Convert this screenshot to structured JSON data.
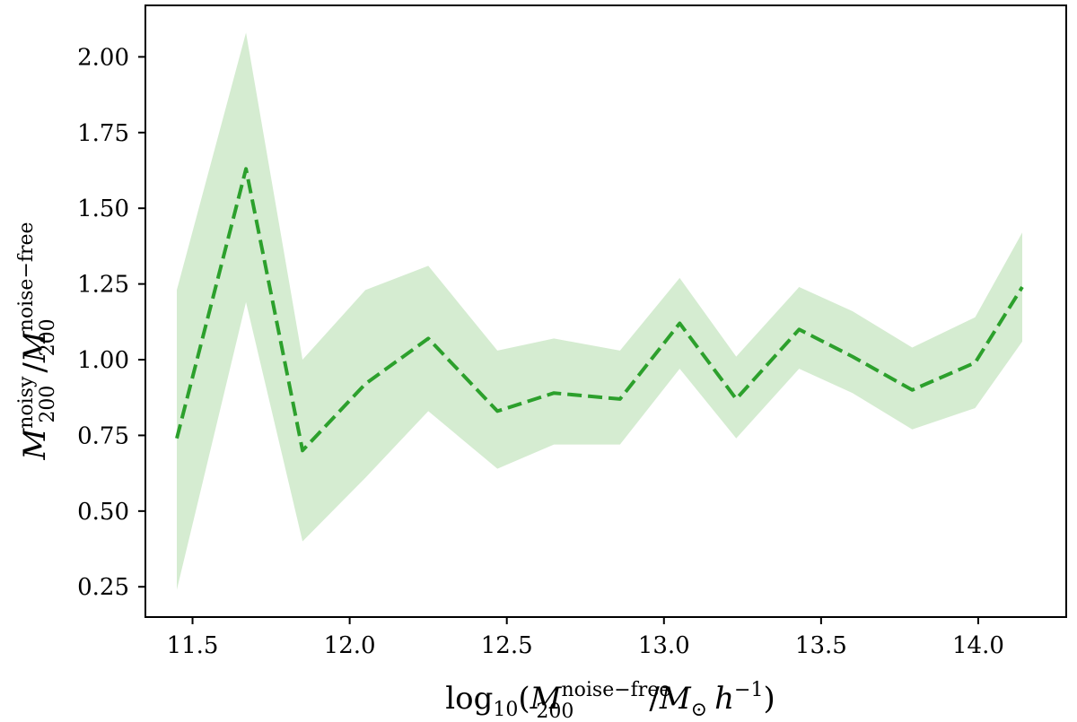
{
  "chart_data": {
    "type": "line",
    "title": "",
    "xlabel": {
      "prefix": "log",
      "log_base": "10",
      "open": "(",
      "symbol": "M",
      "subscript": "200",
      "superscript": "noise−free",
      "divider": "/",
      "mass_symbol": "M",
      "mass_sub": "⊙",
      "h": "h",
      "h_exp": "−1",
      "close": ")"
    },
    "ylabel": {
      "num_symbol": "M",
      "num_sub": "200",
      "num_sup": "noisy",
      "divider": "/",
      "den_symbol": "M",
      "den_sub": "200",
      "den_sup": "noise−free"
    },
    "xlim": [
      11.35,
      14.28
    ],
    "ylim": [
      0.15,
      2.17
    ],
    "xticks": [
      11.5,
      12.0,
      12.5,
      13.0,
      13.5,
      14.0
    ],
    "xtick_labels": [
      "11.5",
      "12.0",
      "12.5",
      "13.0",
      "13.5",
      "14.0"
    ],
    "yticks": [
      0.25,
      0.5,
      0.75,
      1.0,
      1.25,
      1.5,
      1.75,
      2.0
    ],
    "ytick_labels": [
      "0.25",
      "0.50",
      "0.75",
      "1.00",
      "1.25",
      "1.50",
      "1.75",
      "2.00"
    ],
    "grid": false,
    "legend": "none",
    "series": [
      {
        "style": "dashed",
        "color": "#2ca02c",
        "band_color": "#d5ecd1",
        "x": [
          11.45,
          11.67,
          11.85,
          12.05,
          12.25,
          12.47,
          12.65,
          12.86,
          13.05,
          13.23,
          13.43,
          13.6,
          13.79,
          13.99,
          14.14
        ],
        "y": [
          0.74,
          1.63,
          0.7,
          0.92,
          1.07,
          0.83,
          0.89,
          0.87,
          1.12,
          0.87,
          1.1,
          1.01,
          0.9,
          0.99,
          1.24
        ],
        "lower": [
          0.24,
          1.19,
          0.4,
          0.61,
          0.83,
          0.64,
          0.72,
          0.72,
          0.97,
          0.74,
          0.97,
          0.89,
          0.77,
          0.84,
          1.06
        ],
        "upper": [
          1.23,
          2.08,
          1.0,
          1.23,
          1.31,
          1.03,
          1.07,
          1.03,
          1.27,
          1.01,
          1.24,
          1.16,
          1.04,
          1.14,
          1.42
        ]
      }
    ]
  }
}
